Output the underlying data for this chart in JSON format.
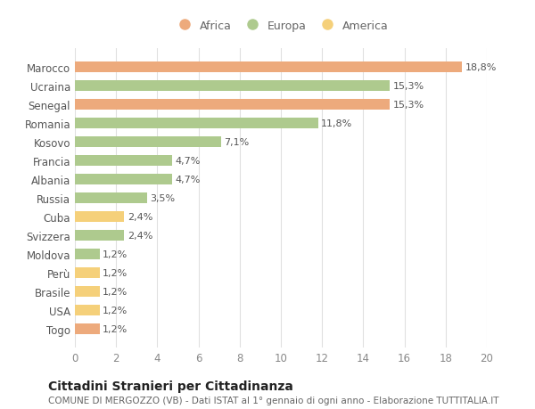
{
  "categories": [
    "Togo",
    "USA",
    "Brasile",
    "Perù",
    "Moldova",
    "Svizzera",
    "Cuba",
    "Russia",
    "Albania",
    "Francia",
    "Kosovo",
    "Romania",
    "Senegal",
    "Ucraina",
    "Marocco"
  ],
  "values": [
    1.2,
    1.2,
    1.2,
    1.2,
    1.2,
    2.4,
    2.4,
    3.5,
    4.7,
    4.7,
    7.1,
    11.8,
    15.3,
    15.3,
    18.8
  ],
  "colors": [
    "#EDAA7C",
    "#F5D07A",
    "#F5D07A",
    "#F5D07A",
    "#AECA8E",
    "#AECA8E",
    "#F5D07A",
    "#AECA8E",
    "#AECA8E",
    "#AECA8E",
    "#AECA8E",
    "#AECA8E",
    "#EDAA7C",
    "#AECA8E",
    "#EDAA7C"
  ],
  "labels": [
    "1,2%",
    "1,2%",
    "1,2%",
    "1,2%",
    "1,2%",
    "2,4%",
    "2,4%",
    "3,5%",
    "4,7%",
    "4,7%",
    "7,1%",
    "11,8%",
    "15,3%",
    "15,3%",
    "18,8%"
  ],
  "legend": [
    {
      "label": "Africa",
      "color": "#EDAA7C"
    },
    {
      "label": "Europa",
      "color": "#AECA8E"
    },
    {
      "label": "America",
      "color": "#F5D07A"
    }
  ],
  "title": "Cittadini Stranieri per Cittadinanza",
  "subtitle": "COMUNE DI MERGOZZO (VB) - Dati ISTAT al 1° gennaio di ogni anno - Elaborazione TUTTITALIA.IT",
  "xlim": [
    0,
    20
  ],
  "xticks": [
    0,
    2,
    4,
    6,
    8,
    10,
    12,
    14,
    16,
    18,
    20
  ],
  "background_color": "#FFFFFF",
  "grid_color": "#E0E0E0",
  "bar_height": 0.55,
  "title_fontsize": 10,
  "subtitle_fontsize": 7.5,
  "label_fontsize": 8,
  "tick_fontsize": 8.5,
  "legend_fontsize": 9
}
